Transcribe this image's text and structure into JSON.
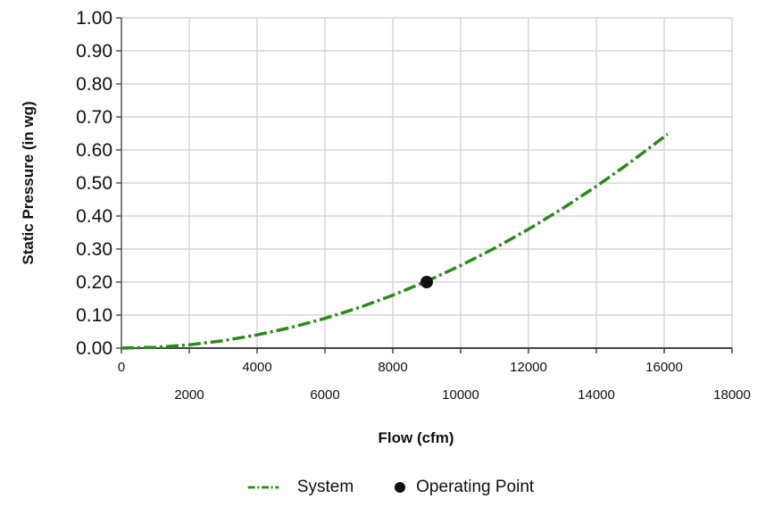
{
  "chart_data": {
    "type": "line",
    "title": "",
    "xlabel": "Flow (cfm)",
    "ylabel": "Static Pressure (in wg)",
    "xlim": [
      0,
      18000
    ],
    "ylim": [
      0,
      1.0
    ],
    "x_ticks_upper": [
      "0",
      "4000",
      "8000",
      "12000",
      "16000"
    ],
    "x_ticks_lower": [
      "2000",
      "6000",
      "10000",
      "14000",
      "18000"
    ],
    "y_ticks": [
      "0.00",
      "0.10",
      "0.20",
      "0.30",
      "0.40",
      "0.50",
      "0.60",
      "0.70",
      "0.80",
      "0.90",
      "1.00"
    ],
    "grid": true,
    "legend_position": "bottom",
    "series": [
      {
        "name": "System",
        "style": "dash-dot",
        "color": "#2a8a1a",
        "x": [
          0,
          1000,
          2000,
          3000,
          4000,
          5000,
          6000,
          7000,
          8000,
          9000,
          10000,
          11000,
          12000,
          13000,
          14000,
          15000,
          16000,
          16100
        ],
        "y": [
          0.0,
          0.0025,
          0.01,
          0.0225,
          0.04,
          0.0625,
          0.09,
          0.1225,
          0.16,
          0.2025,
          0.25,
          0.3025,
          0.36,
          0.4225,
          0.49,
          0.5625,
          0.64,
          0.648
        ]
      },
      {
        "name": "Operating Point",
        "style": "marker",
        "color": "#111111",
        "x": [
          9000
        ],
        "y": [
          0.2
        ]
      }
    ]
  }
}
